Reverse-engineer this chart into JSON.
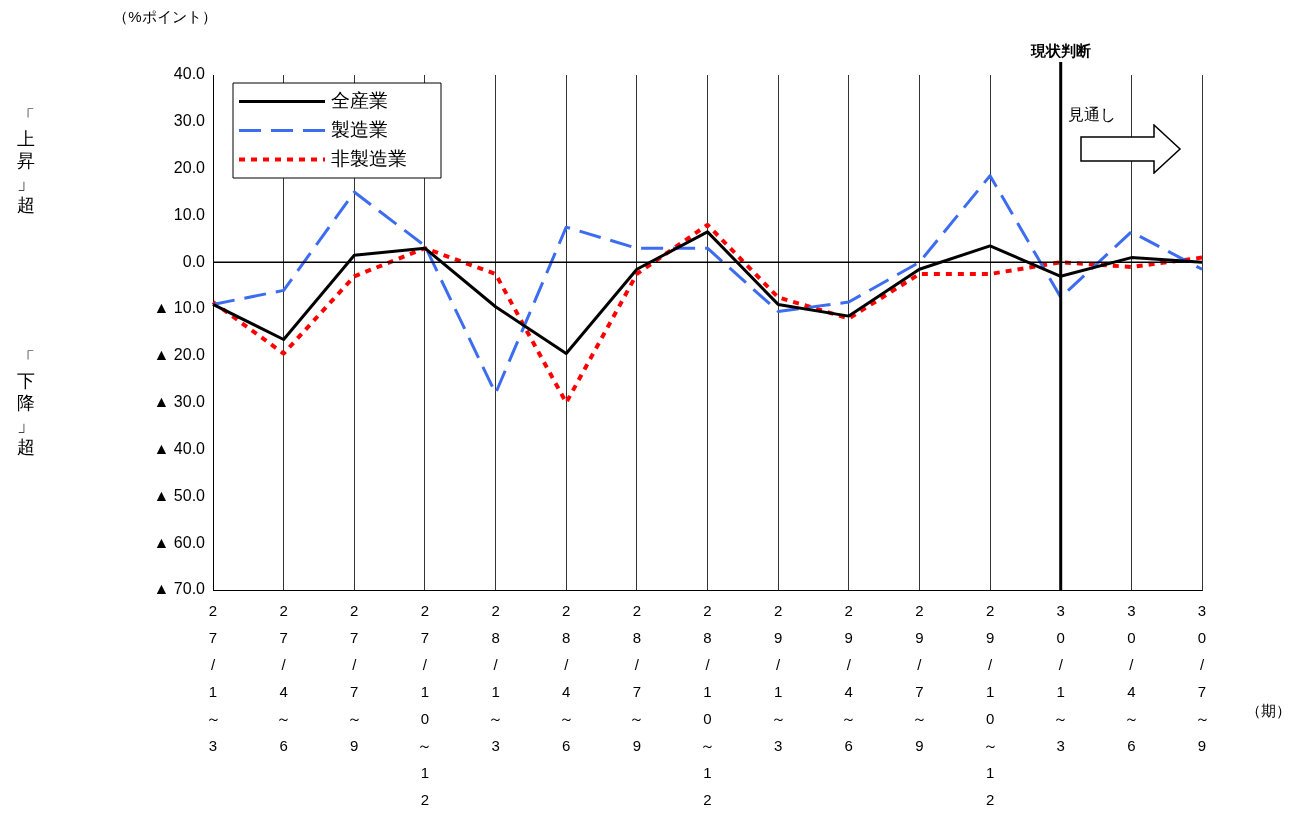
{
  "chart_data": {
    "type": "line",
    "ylabel": "（%ポイント）",
    "xlabel": "（期）",
    "categories": [
      "27/1～3",
      "27/4～6",
      "27/7～9",
      "27/10～12",
      "28/1～3",
      "28/4～6",
      "28/7～9",
      "28/10～12",
      "29/1～3",
      "29/4～6",
      "29/7～9",
      "29/10～12",
      "30/1～3",
      "30/4～6",
      "30/7～9"
    ],
    "series": [
      {
        "name": "全産業",
        "color": "#000000",
        "line_style": "solid",
        "values": [
          -9,
          -16.5,
          1.5,
          3,
          -9.5,
          -19.5,
          -1.5,
          6.5,
          -9,
          -11.5,
          -1.5,
          3.5,
          -3,
          1,
          0
        ]
      },
      {
        "name": "製造業",
        "color": "#3c6cf0",
        "line_style": "dashed",
        "values": [
          -9,
          -6,
          15,
          3.5,
          -28,
          7.5,
          3,
          3,
          -10.5,
          -8.5,
          0,
          18.5,
          -7.5,
          6.5,
          -1.5
        ]
      },
      {
        "name": "非製造業",
        "color": "#ff0000",
        "line_style": "dotted",
        "values": [
          -8.5,
          -19.5,
          -3,
          3,
          -2.5,
          -30,
          -2.5,
          8,
          -7.5,
          -12,
          -2.5,
          -2.5,
          0,
          -1,
          1
        ]
      }
    ],
    "ylim": [
      -70,
      40
    ],
    "yticks": [
      {
        "value": 40,
        "label": "40.0"
      },
      {
        "value": 30,
        "label": "30.0"
      },
      {
        "value": 20,
        "label": "20.0"
      },
      {
        "value": 10,
        "label": "10.0"
      },
      {
        "value": 0,
        "label": "0.0"
      },
      {
        "value": -10,
        "label": "▲ 10.0"
      },
      {
        "value": -20,
        "label": "▲ 20.0"
      },
      {
        "value": -30,
        "label": "▲ 30.0"
      },
      {
        "value": -40,
        "label": "▲ 40.0"
      },
      {
        "value": -50,
        "label": "▲ 50.0"
      },
      {
        "value": -60,
        "label": "▲ 60.0"
      },
      {
        "value": -70,
        "label": "▲ 70.0"
      }
    ],
    "grid": "x",
    "legend": "top left",
    "marker": "none",
    "ref_lines": [
      {
        "axis": "y",
        "value": 0,
        "color": "#000000"
      },
      {
        "axis": "x",
        "value": "30/1～3",
        "label": "現状判断",
        "color": "#000000"
      }
    ],
    "annotations": [
      "「上昇」超",
      "「下降」超",
      "見通し"
    ]
  }
}
